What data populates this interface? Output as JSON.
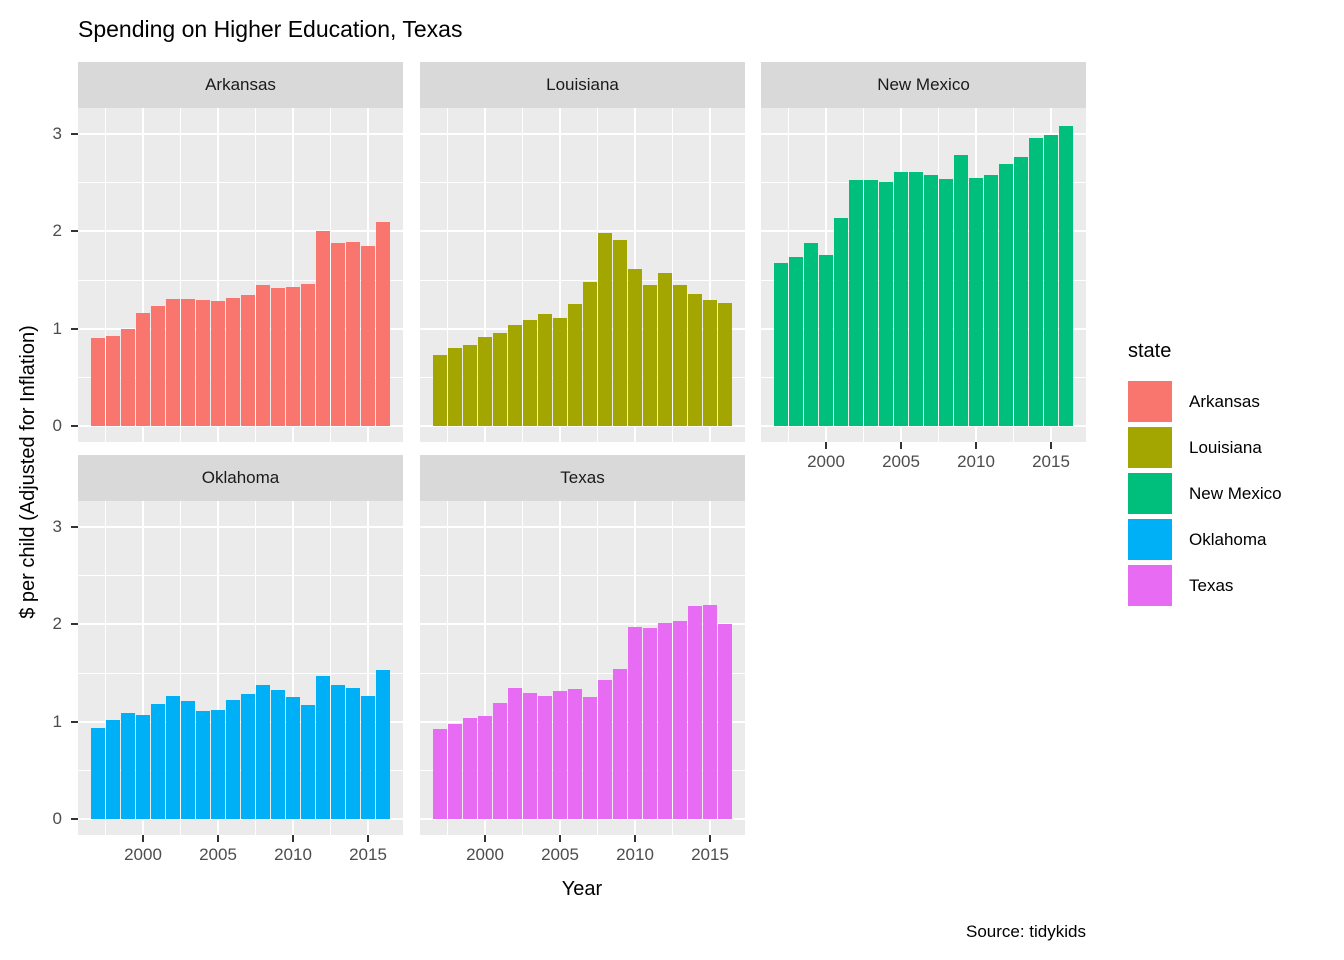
{
  "title": "Spending on Higher Education, Texas",
  "caption": "Source: tidykids",
  "axes": {
    "x_label": "Year",
    "y_label": "$ per child (Adjusted for Inflation)",
    "y_ticks": [
      0,
      1,
      2,
      3
    ],
    "x_ticks": [
      2000,
      2005,
      2010,
      2015
    ]
  },
  "legend": {
    "title": "state",
    "items": [
      {
        "label": "Arkansas",
        "color": "#F8766D"
      },
      {
        "label": "Louisiana",
        "color": "#A3A500"
      },
      {
        "label": "New Mexico",
        "color": "#00BF7D"
      },
      {
        "label": "Oklahoma",
        "color": "#00B0F6"
      },
      {
        "label": "Texas",
        "color": "#E76BF3"
      }
    ]
  },
  "chart_data": {
    "type": "bar",
    "faceted": true,
    "title": "Spending on Higher Education, Texas",
    "xlabel": "Year",
    "ylabel": "$ per child (Adjusted for Inflation)",
    "ylim": [
      0,
      3.27
    ],
    "grid": true,
    "legend_position": "right",
    "x": [
      1997,
      1998,
      1999,
      2000,
      2001,
      2002,
      2003,
      2004,
      2005,
      2006,
      2007,
      2008,
      2009,
      2010,
      2011,
      2012,
      2013,
      2014,
      2015,
      2016
    ],
    "facets": [
      {
        "name": "Arkansas",
        "color": "#F8766D",
        "values": [
          0.9,
          0.92,
          1.0,
          1.16,
          1.23,
          1.31,
          1.31,
          1.3,
          1.28,
          1.32,
          1.35,
          1.45,
          1.42,
          1.43,
          1.46,
          2.0,
          1.88,
          1.89,
          1.85,
          2.1
        ]
      },
      {
        "name": "Louisiana",
        "color": "#A3A500",
        "values": [
          0.73,
          0.8,
          0.83,
          0.91,
          0.96,
          1.04,
          1.09,
          1.15,
          1.11,
          1.25,
          1.48,
          1.98,
          1.91,
          1.61,
          1.45,
          1.57,
          1.45,
          1.36,
          1.29,
          1.26
        ]
      },
      {
        "name": "New Mexico",
        "color": "#00BF7D",
        "values": [
          1.68,
          1.74,
          1.88,
          1.76,
          2.14,
          2.53,
          2.53,
          2.51,
          2.61,
          2.61,
          2.58,
          2.54,
          2.79,
          2.55,
          2.58,
          2.69,
          2.76,
          2.96,
          2.99,
          3.08
        ]
      },
      {
        "name": "Oklahoma",
        "color": "#00B0F6",
        "values": [
          0.94,
          1.02,
          1.09,
          1.07,
          1.18,
          1.26,
          1.21,
          1.11,
          1.12,
          1.22,
          1.28,
          1.38,
          1.33,
          1.25,
          1.17,
          1.47,
          1.38,
          1.35,
          1.26,
          1.53
        ]
      },
      {
        "name": "Texas",
        "color": "#E76BF3",
        "values": [
          0.93,
          0.98,
          1.04,
          1.06,
          1.19,
          1.35,
          1.3,
          1.26,
          1.32,
          1.34,
          1.25,
          1.43,
          1.54,
          1.97,
          1.96,
          2.01,
          2.03,
          2.19,
          2.2,
          2.0
        ]
      }
    ]
  }
}
